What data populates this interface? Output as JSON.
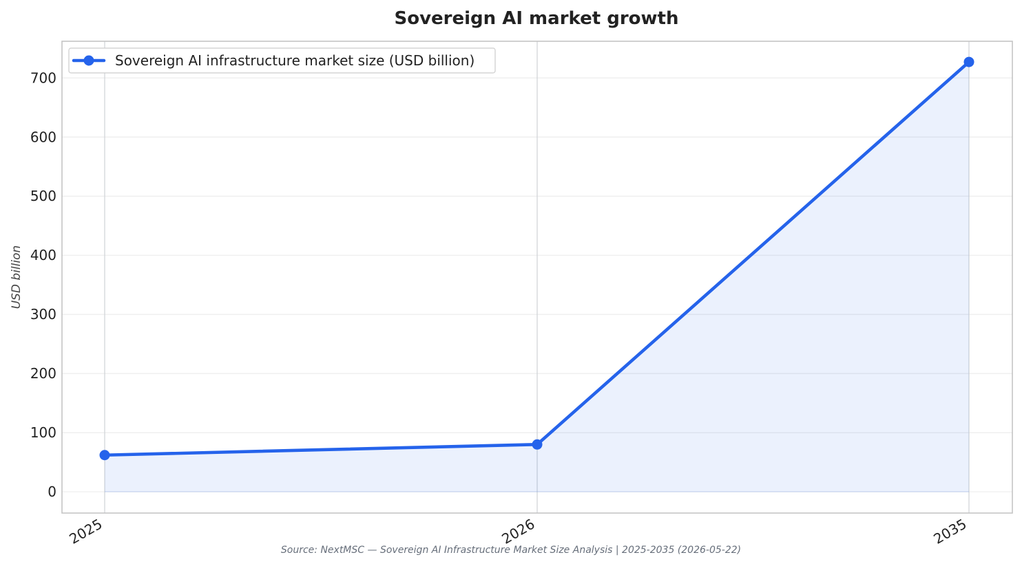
{
  "chart_data": {
    "type": "line",
    "title": "Sovereign AI market growth",
    "xlabel": "",
    "ylabel": "USD billion",
    "categories": [
      "2025",
      "2026",
      "2035"
    ],
    "series": [
      {
        "name": "Sovereign AI infrastructure market size (USD billion)",
        "values": [
          62,
          80,
          727
        ],
        "color": "#2563eb"
      }
    ],
    "yticks": [
      0,
      100,
      200,
      300,
      400,
      500,
      600,
      700
    ],
    "ylim": [
      -36,
      762
    ],
    "grid": true,
    "legend_position": "top-left",
    "fill_under_line": true,
    "source": "Source: NextMSC — Sovereign AI Infrastructure Market Size Analysis | 2025-2035 (2026-05-22)"
  }
}
